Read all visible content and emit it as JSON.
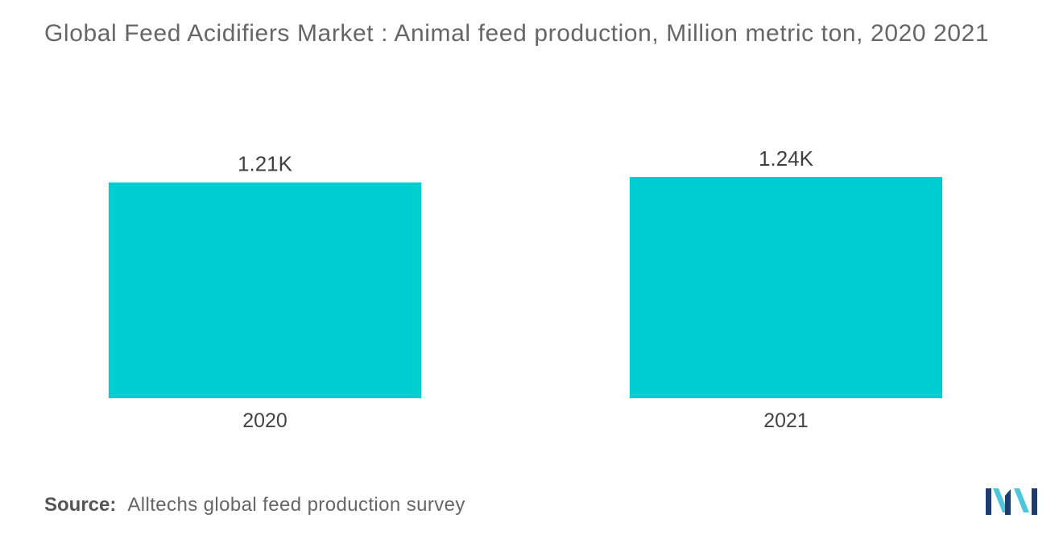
{
  "chart_data": {
    "type": "bar",
    "title": "Global Feed Acidifiers Market : Animal feed production, Million metric ton, 2020 2021",
    "categories": [
      "2020",
      "2021"
    ],
    "values": [
      1210,
      1240
    ],
    "data_labels": [
      "1.21K",
      "1.24K"
    ],
    "xlabel": "",
    "ylabel": "",
    "grid": false,
    "y_axis_visible": false,
    "bar_color": "#00CED1"
  },
  "source": {
    "label": "Source:",
    "text": "Alltechs global feed production survey"
  },
  "brand": {
    "logo_colors": {
      "dark": "#1D3C6E",
      "light": "#4EC5D9"
    }
  }
}
